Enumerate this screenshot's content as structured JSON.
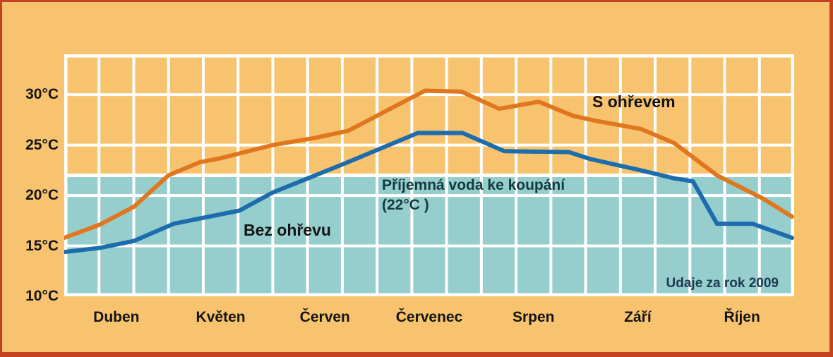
{
  "frame": {
    "background_color": "#f7c36f",
    "border_color": "#c2431d"
  },
  "chart_data": {
    "type": "line",
    "title": "",
    "xlabel": "",
    "ylabel": "",
    "unit": "°C",
    "categories": [
      "Duben",
      "Květen",
      "Červen",
      "Červenec",
      "Srpen",
      "Září",
      "Říjen"
    ],
    "ylim": [
      10,
      34
    ],
    "xlim_months": [
      0,
      7
    ],
    "yticks": {
      "values": [
        30,
        25,
        20,
        15,
        10
      ],
      "labels": [
        "30°C",
        "25°C",
        "20°C",
        "15°C",
        "10°C"
      ]
    },
    "grid": {
      "show": true,
      "color": "#ffffff",
      "x_cells_per_month": 3,
      "horizontal_lines_at": [
        30,
        25,
        20,
        15
      ]
    },
    "comfort_band": {
      "temp_min": 10,
      "temp_max": 22,
      "color": "#96cecd",
      "label_line1": "Příjemná voda ke koupání",
      "label_line2": "(22°C )"
    },
    "series": [
      {
        "name": "S ohřevem",
        "color": "#e0771e",
        "points": [
          [
            0.0,
            15.8
          ],
          [
            0.34,
            17.1
          ],
          [
            0.67,
            18.9
          ],
          [
            1.0,
            22.0
          ],
          [
            1.3,
            23.3
          ],
          [
            1.5,
            23.7
          ],
          [
            2.0,
            25.0
          ],
          [
            2.4,
            25.7
          ],
          [
            2.72,
            26.4
          ],
          [
            3.46,
            30.4
          ],
          [
            3.81,
            30.3
          ],
          [
            4.17,
            28.6
          ],
          [
            4.55,
            29.3
          ],
          [
            4.88,
            27.9
          ],
          [
            5.1,
            27.4
          ],
          [
            5.53,
            26.6
          ],
          [
            5.85,
            25.2
          ],
          [
            6.26,
            22.0
          ],
          [
            6.7,
            19.7
          ],
          [
            6.98,
            17.9
          ]
        ]
      },
      {
        "name": "Bez ohřevu",
        "color": "#1c6cae",
        "points": [
          [
            0.0,
            14.4
          ],
          [
            0.34,
            14.8
          ],
          [
            0.67,
            15.5
          ],
          [
            1.05,
            17.2
          ],
          [
            1.34,
            17.8
          ],
          [
            1.68,
            18.5
          ],
          [
            2.0,
            20.3
          ],
          [
            2.72,
            23.3
          ],
          [
            3.39,
            26.2
          ],
          [
            3.82,
            26.2
          ],
          [
            4.22,
            24.4
          ],
          [
            4.84,
            24.3
          ],
          [
            5.05,
            23.6
          ],
          [
            5.53,
            22.5
          ],
          [
            5.85,
            21.7
          ],
          [
            6.03,
            21.4
          ],
          [
            6.26,
            17.2
          ],
          [
            6.6,
            17.2
          ],
          [
            6.98,
            15.8
          ]
        ]
      }
    ],
    "source_note": "Udaje za rok 2009"
  }
}
